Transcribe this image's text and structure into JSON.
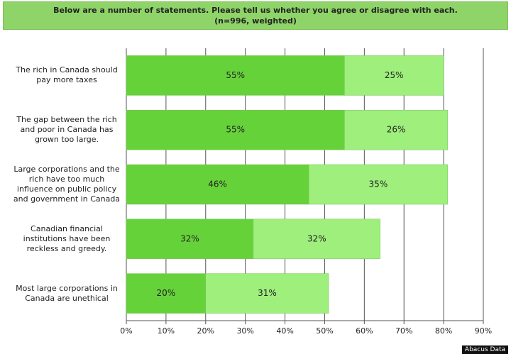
{
  "chart_data": {
    "type": "stacked_barh",
    "title": "Below are a number of statements.  Please tell us whether you agree or disagree with each.",
    "subtitle": "(n=996, weighted)",
    "categories": [
      "The rich in Canada should pay more taxes",
      "The gap between the rich and poor in Canada has grown too large.",
      "Large corporations and the rich have too much influence on public policy and government in Canada",
      "Canadian financial institutions have been reckless and greedy.",
      "Most large corporations in Canada are unethical"
    ],
    "series": [
      {
        "color": "#66d23a",
        "values": [
          55,
          55,
          46,
          32,
          20
        ],
        "value_labels": [
          "55%",
          "55%",
          "46%",
          "32%",
          "20%"
        ]
      },
      {
        "color": "#9eef7c",
        "values": [
          25,
          26,
          35,
          32,
          31
        ],
        "value_labels": [
          "25%",
          "26%",
          "35%",
          "32%",
          "31%"
        ]
      }
    ],
    "xlim": [
      0,
      90
    ],
    "xticks": [
      {
        "value": 0,
        "label": "0%"
      },
      {
        "value": 10,
        "label": "10%"
      },
      {
        "value": 20,
        "label": "20%"
      },
      {
        "value": 30,
        "label": "30%"
      },
      {
        "value": 40,
        "label": "40%"
      },
      {
        "value": 50,
        "label": "50%"
      },
      {
        "value": 60,
        "label": "60%"
      },
      {
        "value": 70,
        "label": "70%"
      },
      {
        "value": 80,
        "label": "80%"
      },
      {
        "value": 90,
        "label": "90%"
      }
    ],
    "grid": true,
    "source": "Abacus Data"
  }
}
